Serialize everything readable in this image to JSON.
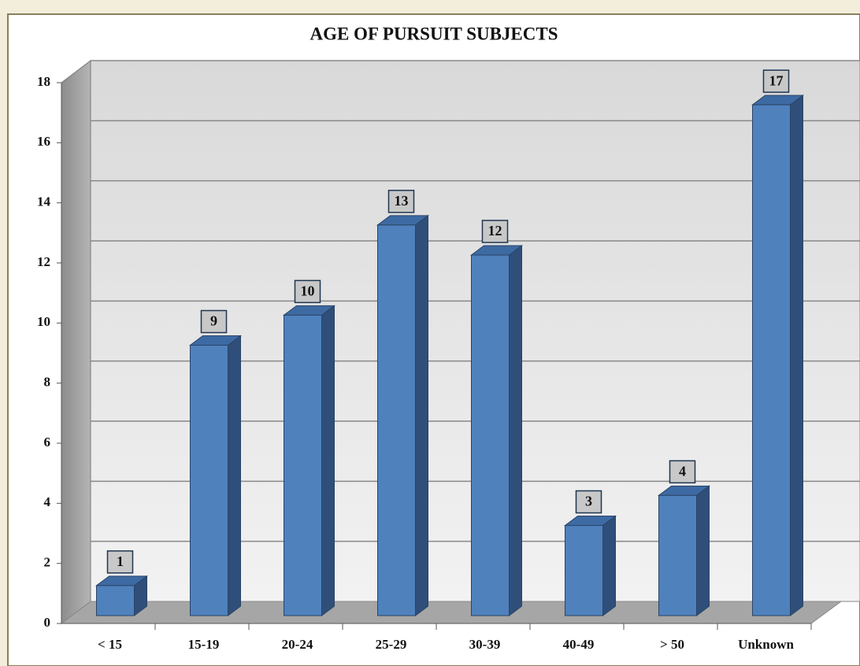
{
  "chart_data": {
    "type": "bar",
    "title": "AGE OF PURSUIT SUBJECTS",
    "categories": [
      "< 15",
      "15-19",
      "20-24",
      "25-29",
      "30-39",
      "40-49",
      "> 50",
      "Unknown"
    ],
    "values": [
      1,
      9,
      10,
      13,
      12,
      3,
      4,
      17
    ],
    "color": "#4f81bd",
    "ylim": [
      0,
      18
    ],
    "yticks": [
      0,
      2,
      4,
      6,
      8,
      10,
      12,
      14,
      16,
      18
    ],
    "grid": true
  }
}
